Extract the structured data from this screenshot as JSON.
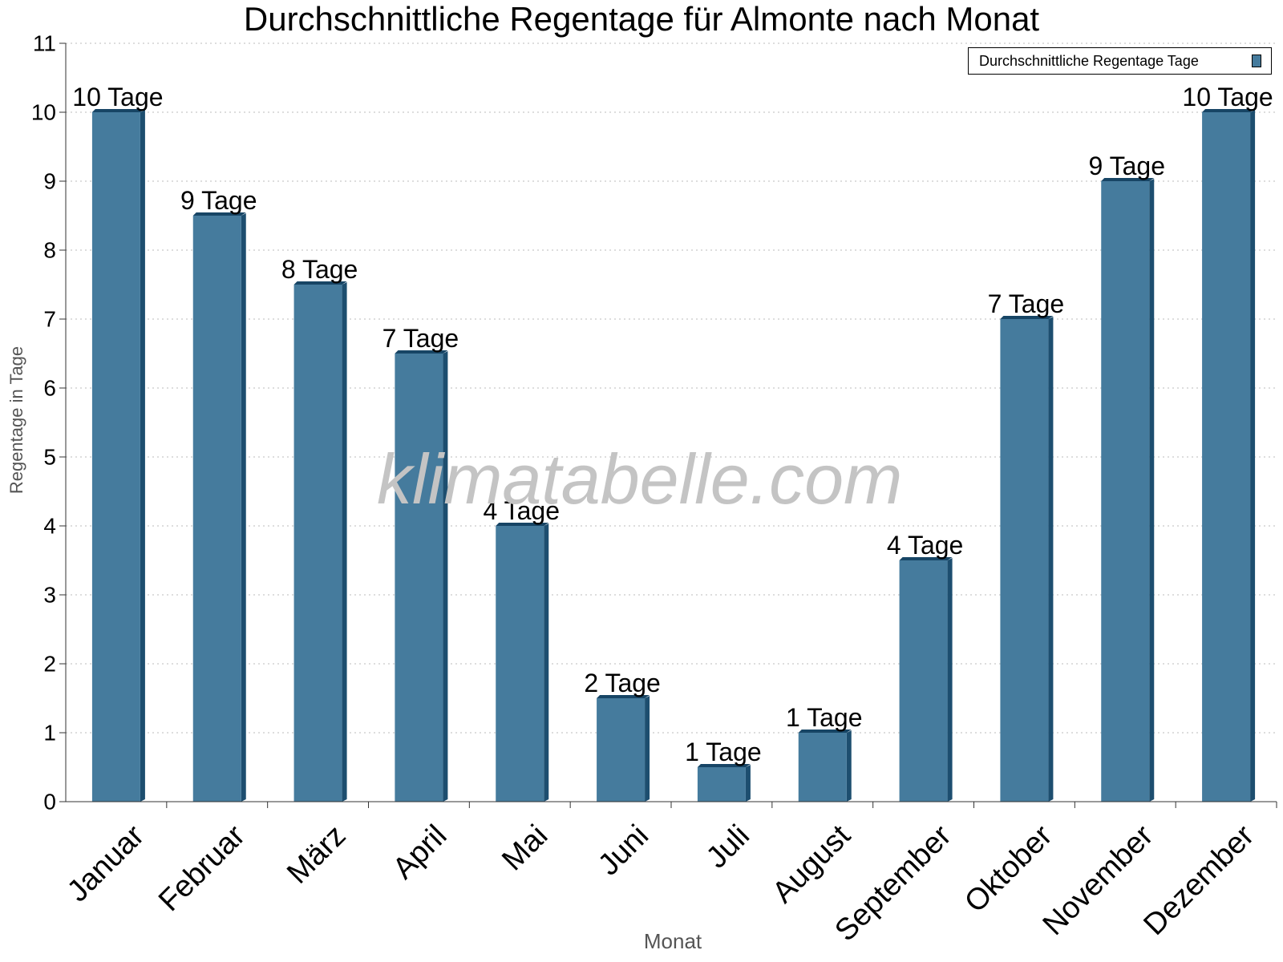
{
  "chart_data": {
    "type": "bar",
    "title": "Durchschnittliche Regentage für Almonte nach Monat",
    "xlabel": "Monat",
    "ylabel": "Regentage in Tage",
    "categories": [
      "Januar",
      "Februar",
      "März",
      "April",
      "Mai",
      "Juni",
      "Juli",
      "August",
      "September",
      "Oktober",
      "November",
      "Dezember"
    ],
    "series": [
      {
        "name": "Durchschnittliche Regentage Tage",
        "values": [
          10,
          8.5,
          7.5,
          6.5,
          4,
          1.5,
          0.5,
          1,
          3.5,
          7,
          9,
          10
        ],
        "labels": [
          "10 Tage",
          "9 Tage",
          "8 Tage",
          "7 Tage",
          "4 Tage",
          "2 Tage",
          "1 Tage",
          "1 Tage",
          "4 Tage",
          "7 Tage",
          "9 Tage",
          "10 Tage"
        ]
      }
    ],
    "ylim": [
      0,
      11
    ],
    "yticks": [
      0,
      1,
      2,
      3,
      4,
      5,
      6,
      7,
      8,
      9,
      10,
      11
    ],
    "grid": true,
    "legend_position": "top-right",
    "colors": {
      "bar": "#457b9d",
      "bar_side": "#1d4e6f",
      "bar_top": "#174565"
    }
  },
  "watermark": "klimatabelle.com"
}
